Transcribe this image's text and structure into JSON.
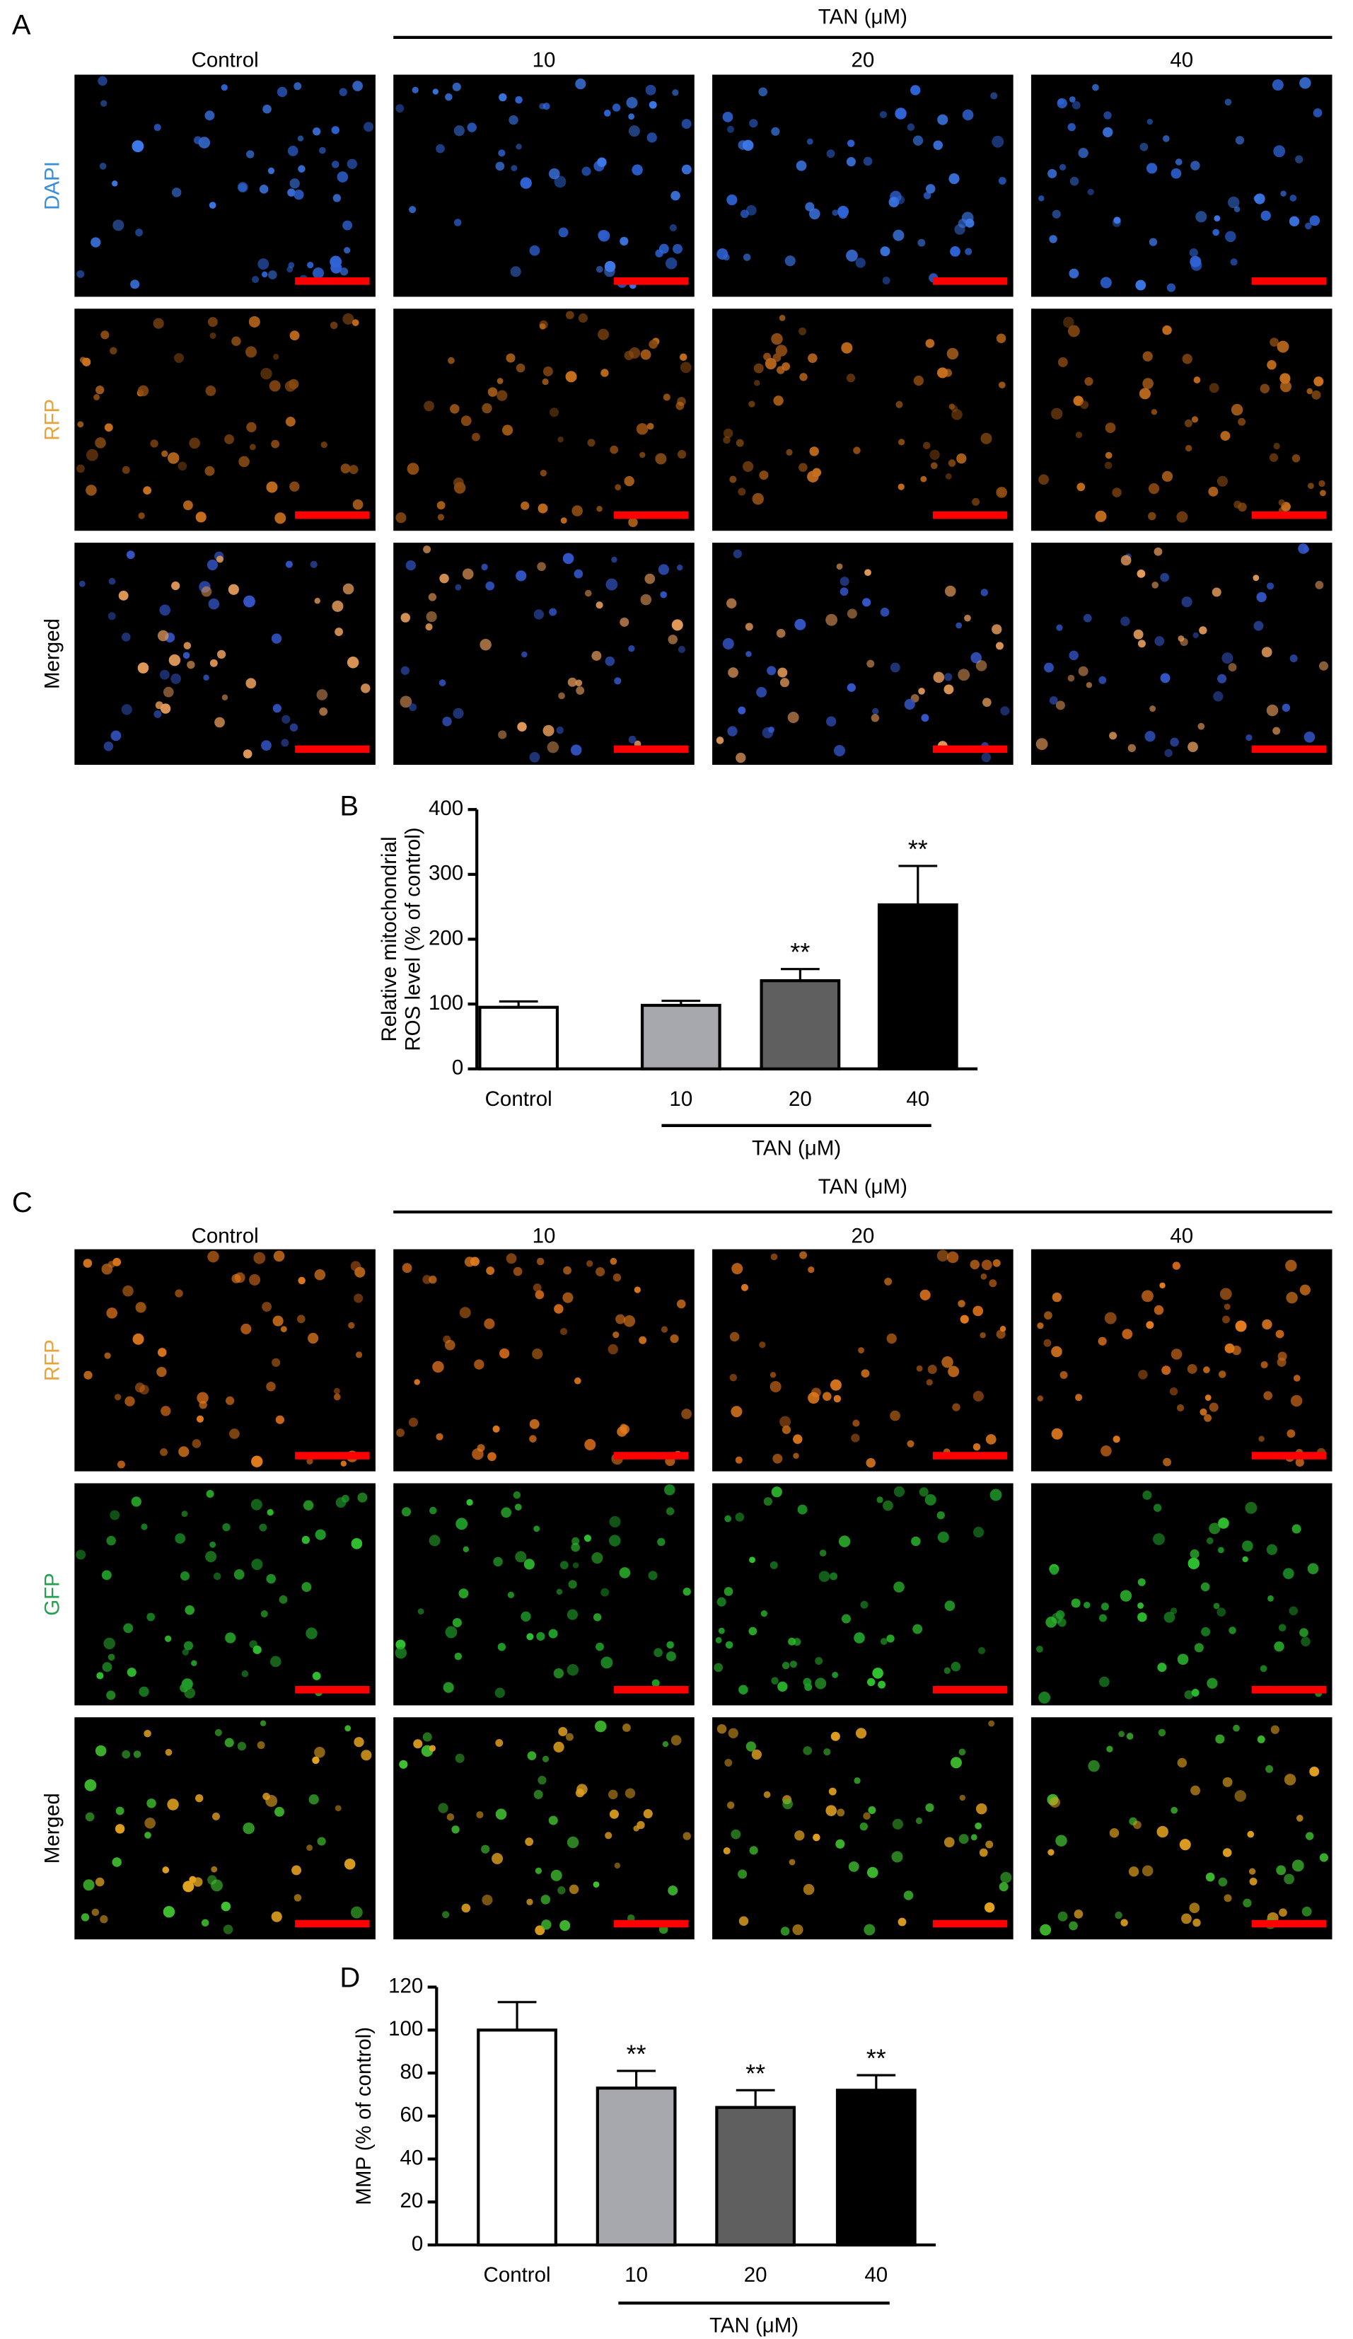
{
  "panel_labels": [
    "A",
    "B",
    "C",
    "D"
  ],
  "panel_a": {
    "group_label": "TAN (μM)",
    "columns": [
      "Control",
      "10",
      "20",
      "40"
    ],
    "rows": [
      "DAPI",
      "RFP",
      "Merged"
    ]
  },
  "panel_c": {
    "group_label": "TAN (μM)",
    "columns": [
      "Control",
      "10",
      "20",
      "40"
    ],
    "rows": [
      "RFP",
      "GFP",
      "Merged"
    ]
  },
  "chart_data": [
    {
      "type": "bar",
      "ylabel": [
        "Relative mitochondrial",
        "ROS level (% of control)"
      ],
      "categories": [
        "Control",
        "10",
        "20",
        "40"
      ],
      "group_label": "TAN (μM)",
      "values": [
        95,
        98,
        136,
        253
      ],
      "errors": [
        9,
        7,
        18,
        60
      ],
      "colors": [
        "#ffffff",
        "#a7a7ae",
        "#5f5f5f",
        "#000000"
      ],
      "annotations": [
        null,
        null,
        "**",
        "**"
      ],
      "ylim": [
        0,
        400
      ],
      "yticks": [
        0,
        100,
        200,
        300,
        400
      ]
    },
    {
      "type": "bar",
      "ylabel": [
        "MMP (% of control)"
      ],
      "categories": [
        "Control",
        "10",
        "20",
        "40"
      ],
      "group_label": "TAN (μM)",
      "values": [
        100,
        73,
        64,
        72
      ],
      "errors": [
        13,
        8,
        8,
        7
      ],
      "colors": [
        "#ffffff",
        "#a7a7ae",
        "#5f5f5f",
        "#000000"
      ],
      "annotations": [
        null,
        "**",
        "**",
        "**"
      ],
      "ylim": [
        0,
        120
      ],
      "yticks": [
        0,
        20,
        40,
        60,
        80,
        100,
        120
      ]
    }
  ]
}
